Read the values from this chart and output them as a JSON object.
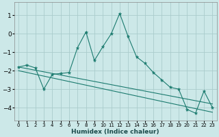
{
  "xlabel": "Humidex (Indice chaleur)",
  "ylabel": "",
  "background_color": "#cce8e8",
  "grid_color": "#aacccc",
  "line_color": "#1a7a6e",
  "xlim": [
    -0.5,
    23.5
  ],
  "ylim": [
    -4.7,
    1.7
  ],
  "yticks": [
    1,
    0,
    -1,
    -2,
    -3,
    -4
  ],
  "xticks": [
    0,
    1,
    2,
    3,
    4,
    5,
    6,
    7,
    8,
    9,
    10,
    11,
    12,
    13,
    14,
    15,
    16,
    17,
    18,
    19,
    20,
    21,
    22,
    23
  ],
  "xtick_labels": [
    "0",
    "1",
    "2",
    "3",
    "4",
    "5",
    "6",
    "7",
    "8",
    "9",
    "10",
    "11",
    "12",
    "13",
    "14",
    "15",
    "16",
    "17",
    "18",
    "19",
    "20",
    "21",
    "22",
    "23"
  ],
  "series": [
    {
      "x": [
        0,
        1,
        2,
        3,
        4,
        5,
        6,
        7,
        8,
        9,
        10,
        11,
        12,
        13,
        14,
        15,
        16,
        17,
        18,
        19,
        20,
        21,
        22,
        23
      ],
      "y": [
        -1.8,
        -1.7,
        -1.85,
        -3.0,
        -2.2,
        -2.15,
        -2.1,
        -0.75,
        0.1,
        -1.45,
        -0.7,
        0.0,
        1.1,
        -0.15,
        -1.25,
        -1.6,
        -2.1,
        -2.5,
        -2.9,
        -3.0,
        -4.1,
        -4.3,
        -3.1,
        -4.0
      ],
      "no_markers": false
    },
    {
      "x": [
        0,
        23
      ],
      "y": [
        -1.8,
        -3.8
      ],
      "no_markers": true
    },
    {
      "x": [
        0,
        23
      ],
      "y": [
        -2.0,
        -4.25
      ],
      "no_markers": true
    }
  ]
}
